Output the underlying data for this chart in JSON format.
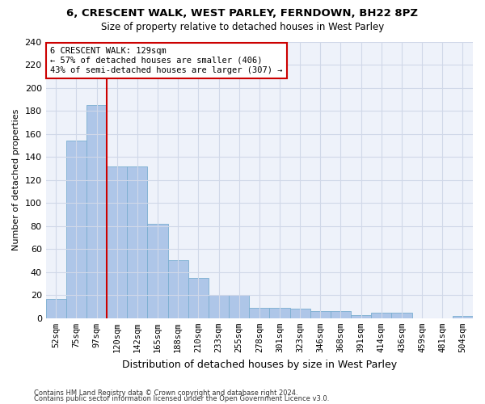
{
  "title1": "6, CRESCENT WALK, WEST PARLEY, FERNDOWN, BH22 8PZ",
  "title2": "Size of property relative to detached houses in West Parley",
  "xlabel": "Distribution of detached houses by size in West Parley",
  "ylabel": "Number of detached properties",
  "footer1": "Contains HM Land Registry data © Crown copyright and database right 2024.",
  "footer2": "Contains public sector information licensed under the Open Government Licence v3.0.",
  "bar_labels": [
    "52sqm",
    "75sqm",
    "97sqm",
    "120sqm",
    "142sqm",
    "165sqm",
    "188sqm",
    "210sqm",
    "233sqm",
    "255sqm",
    "278sqm",
    "301sqm",
    "323sqm",
    "346sqm",
    "368sqm",
    "391sqm",
    "414sqm",
    "436sqm",
    "459sqm",
    "481sqm",
    "504sqm"
  ],
  "bar_values": [
    17,
    154,
    185,
    132,
    132,
    82,
    50,
    35,
    20,
    20,
    9,
    9,
    8,
    6,
    6,
    3,
    5,
    5,
    0,
    0,
    2
  ],
  "bar_color": "#aec6e8",
  "bar_edge_color": "#7aaed0",
  "grid_color": "#d0d8e8",
  "background_color": "#ffffff",
  "plot_bg_color": "#eef2fa",
  "vline_x": 2.5,
  "vline_color": "#cc0000",
  "annotation_text": "6 CRESCENT WALK: 129sqm\n← 57% of detached houses are smaller (406)\n43% of semi-detached houses are larger (307) →",
  "annotation_box_color": "#ffffff",
  "annotation_box_edge": "#cc0000",
  "ylim": [
    0,
    240
  ],
  "yticks": [
    0,
    20,
    40,
    60,
    80,
    100,
    120,
    140,
    160,
    180,
    200,
    220,
    240
  ],
  "title1_fontsize": 9.5,
  "title2_fontsize": 8.5,
  "ylabel_fontsize": 8,
  "xlabel_fontsize": 9,
  "tick_fontsize": 8,
  "xtick_fontsize": 7.5,
  "footer_fontsize": 6.0
}
